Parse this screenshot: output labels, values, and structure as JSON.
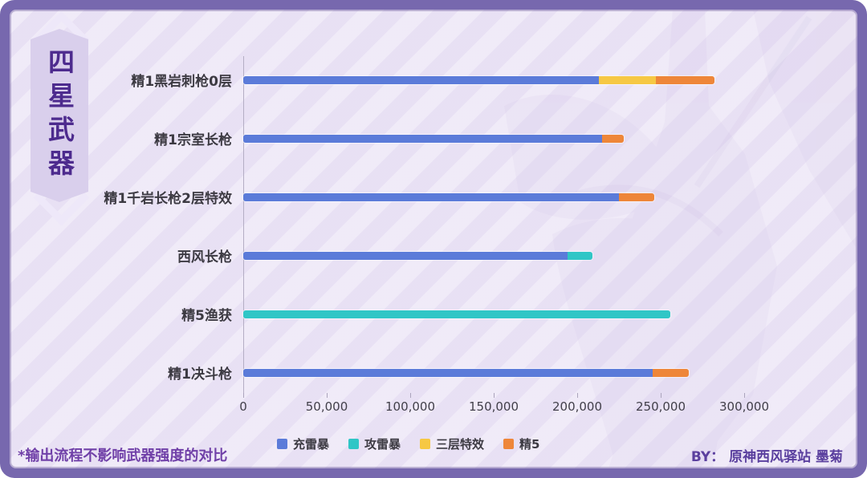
{
  "banner": {
    "text": "四星武器"
  },
  "note": "*输出流程不影响武器强度的对比",
  "credit": "BY： 原神西风驿站 墨菊",
  "colors": {
    "frame_purple": "#7768ae",
    "inner_background": "#ece5f6",
    "ribbon_fill": "#d9cfec",
    "banner_text": "#4d2b8e",
    "series_blue": "#5b7bd9",
    "series_teal": "#30c6c6",
    "series_yellow": "#f6c844",
    "series_orange": "#ee8639"
  },
  "chart_data": {
    "type": "bar",
    "orientation": "horizontal",
    "stacked": true,
    "title": "",
    "xlabel": "",
    "ylabel": "",
    "grid": false,
    "legend_position": "bottom",
    "categories": [
      "精1黑岩刺枪0层",
      "精1宗室长枪",
      "精1千岩长枪2层特效",
      "西风长枪",
      "精5渔获",
      "精1决斗枪"
    ],
    "series": [
      {
        "name": "充雷暴",
        "color": "#5b7bd9",
        "values": [
          213000,
          215000,
          225000,
          194000,
          0,
          245000
        ]
      },
      {
        "name": "攻雷暴",
        "color": "#30c6c6",
        "values": [
          0,
          0,
          0,
          15000,
          256000,
          0
        ]
      },
      {
        "name": "三层特效",
        "color": "#f6c844",
        "values": [
          34000,
          0,
          0,
          0,
          0,
          0
        ]
      },
      {
        "name": "精5",
        "color": "#ee8639",
        "values": [
          35000,
          13000,
          21000,
          0,
          0,
          22000
        ]
      }
    ],
    "totals": [
      282000,
      228000,
      246000,
      209000,
      256000,
      267000
    ],
    "xlim": [
      0,
      300000
    ],
    "xticks": [
      0,
      50000,
      100000,
      150000,
      200000,
      250000,
      300000
    ],
    "xtick_labels": [
      "0",
      "50,000",
      "100,000",
      "150,000",
      "200,000",
      "250,000",
      "300,000"
    ]
  }
}
